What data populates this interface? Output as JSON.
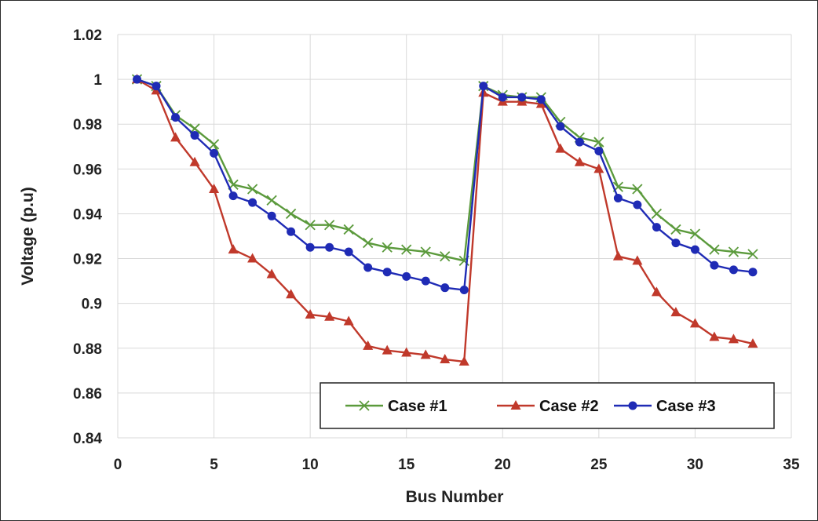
{
  "chart_data": {
    "type": "line",
    "title": "",
    "xlabel": "Bus Number",
    "ylabel": "Voltage (p.u)",
    "xlim": [
      0,
      35
    ],
    "ylim": [
      0.84,
      1.02
    ],
    "xticks": [
      0,
      5,
      10,
      15,
      20,
      25,
      30,
      35
    ],
    "yticks": [
      0.84,
      0.86,
      0.88,
      0.9,
      0.92,
      0.94,
      0.96,
      0.98,
      1,
      1.02
    ],
    "ytick_labels": [
      "0.84",
      "0.86",
      "0.88",
      "0.9",
      "0.92",
      "0.94",
      "0.96",
      "0.98",
      "1",
      "1.02"
    ],
    "grid": true,
    "legend_position": "bottom-right",
    "x": [
      1,
      2,
      3,
      4,
      5,
      6,
      7,
      8,
      9,
      10,
      11,
      12,
      13,
      14,
      15,
      16,
      17,
      18,
      19,
      20,
      21,
      22,
      23,
      24,
      25,
      26,
      27,
      28,
      29,
      30,
      31,
      32,
      33
    ],
    "series": [
      {
        "name": "Case #1",
        "color": "#5b9a3c",
        "marker": "x",
        "values": [
          1.0,
          0.997,
          0.984,
          0.978,
          0.971,
          0.953,
          0.951,
          0.946,
          0.94,
          0.935,
          0.935,
          0.933,
          0.927,
          0.925,
          0.924,
          0.923,
          0.921,
          0.919,
          0.997,
          0.993,
          0.992,
          0.992,
          0.981,
          0.974,
          0.972,
          0.952,
          0.951,
          0.94,
          0.933,
          0.931,
          0.924,
          0.923,
          0.922
        ]
      },
      {
        "name": "Case #2",
        "color": "#c0392b",
        "marker": "triangle",
        "values": [
          1.0,
          0.995,
          0.974,
          0.963,
          0.951,
          0.924,
          0.92,
          0.913,
          0.904,
          0.895,
          0.894,
          0.892,
          0.881,
          0.879,
          0.878,
          0.877,
          0.875,
          0.874,
          0.994,
          0.99,
          0.99,
          0.989,
          0.969,
          0.963,
          0.96,
          0.921,
          0.919,
          0.905,
          0.896,
          0.891,
          0.885,
          0.884,
          0.882
        ]
      },
      {
        "name": "Case #3",
        "color": "#1f2bb5",
        "marker": "circle",
        "values": [
          1.0,
          0.997,
          0.983,
          0.975,
          0.967,
          0.948,
          0.945,
          0.939,
          0.932,
          0.925,
          0.925,
          0.923,
          0.916,
          0.914,
          0.912,
          0.91,
          0.907,
          0.906,
          0.997,
          0.992,
          0.992,
          0.991,
          0.979,
          0.972,
          0.968,
          0.947,
          0.944,
          0.934,
          0.927,
          0.924,
          0.917,
          0.915,
          0.914
        ]
      }
    ]
  }
}
